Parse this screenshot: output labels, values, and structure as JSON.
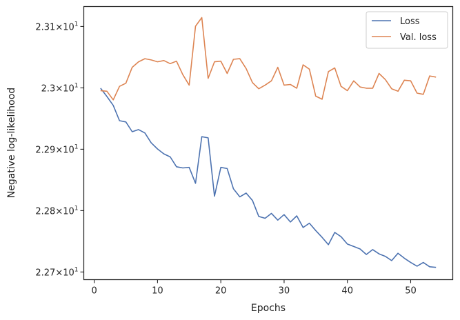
{
  "chart_data": {
    "type": "line",
    "xlabel": "Epochs",
    "ylabel": "Negative log-likelihood",
    "xlim": [
      -1.65,
      56.65
    ],
    "ylim": [
      22.6875,
      23.1325
    ],
    "x_ticks": [
      0,
      10,
      20,
      30,
      40,
      50
    ],
    "x_tick_labels": [
      "0",
      "10",
      "20",
      "30",
      "40",
      "50"
    ],
    "y_ticks": [
      22.7,
      22.8,
      22.9,
      23.0,
      23.1
    ],
    "y_tick_mantissas": [
      "2.27",
      "2.28",
      "2.29",
      "2.3",
      "2.31"
    ],
    "y_tick_mult": "×",
    "y_tick_base": "10",
    "y_tick_exp": "1",
    "legend_position": "top-right",
    "grid": false,
    "x": [
      1,
      2,
      3,
      4,
      5,
      6,
      7,
      8,
      9,
      10,
      11,
      12,
      13,
      14,
      15,
      16,
      17,
      18,
      19,
      20,
      21,
      22,
      23,
      24,
      25,
      26,
      27,
      28,
      29,
      30,
      31,
      32,
      33,
      34,
      35,
      36,
      37,
      38,
      39,
      40,
      41,
      42,
      43,
      44,
      45,
      46,
      47,
      48,
      49,
      50,
      51,
      52,
      53,
      54
    ],
    "series": [
      {
        "name": "Loss",
        "color": "#4c72b0",
        "values": [
          22.9995,
          22.986,
          22.9715,
          22.9465,
          22.9445,
          22.9285,
          22.932,
          22.9265,
          22.9105,
          22.9005,
          22.8925,
          22.8875,
          22.8715,
          22.8695,
          22.8705,
          22.8445,
          22.9205,
          22.9185,
          22.8235,
          22.8705,
          22.8685,
          22.8355,
          22.8225,
          22.8285,
          22.8165,
          22.7905,
          22.7875,
          22.7955,
          22.7845,
          22.7935,
          22.7815,
          22.7915,
          22.7725,
          22.7795,
          22.7675,
          22.7565,
          22.7445,
          22.7645,
          22.7575,
          22.7455,
          22.7415,
          22.7375,
          22.7285,
          22.7365,
          22.7295,
          22.7255,
          22.7185,
          22.7305,
          22.7225,
          22.7155,
          22.7095,
          22.7155,
          22.7085,
          22.7075
        ]
      },
      {
        "name": "Val. loss",
        "color": "#dd8452",
        "values": [
          22.9955,
          22.9945,
          22.9805,
          23.0025,
          23.0075,
          23.0335,
          23.0425,
          23.0475,
          23.0455,
          23.0425,
          23.0445,
          23.0395,
          23.0435,
          23.0215,
          23.0045,
          23.1005,
          23.1145,
          23.0155,
          23.0425,
          23.0435,
          23.0235,
          23.0465,
          23.0475,
          23.0315,
          23.0085,
          22.9985,
          23.0045,
          23.0115,
          23.0335,
          23.0045,
          23.0055,
          22.9995,
          23.0375,
          23.0305,
          22.9865,
          22.9815,
          23.0265,
          23.0325,
          23.0025,
          22.9955,
          23.0115,
          23.0015,
          22.9995,
          22.9995,
          23.0235,
          23.0135,
          22.9985,
          22.9945,
          23.0125,
          23.0115,
          22.9915,
          22.9895,
          23.0195,
          23.0175
        ]
      }
    ]
  }
}
